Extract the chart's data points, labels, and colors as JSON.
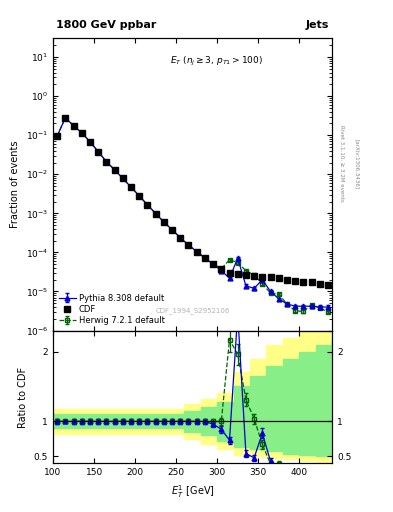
{
  "title_left": "1800 GeV ppbar",
  "title_right": "Jets",
  "watermark": "CDF_1994_S2952106",
  "right_label_top": "Rivet 3.1.10, ≥ 3.2M events",
  "right_label_bot": "[arXiv:1306.3436]",
  "ylabel_main": "Fraction of events",
  "ylabel_ratio": "Ratio to CDF",
  "xlabel": "$E_T^1$ [GeV]",
  "cdf_x": [
    105,
    115,
    125,
    135,
    145,
    155,
    165,
    175,
    185,
    195,
    205,
    215,
    225,
    235,
    245,
    255,
    265,
    275,
    285,
    295,
    305,
    315,
    325,
    335,
    345,
    355,
    365,
    375,
    385,
    395,
    405,
    415,
    425,
    435
  ],
  "cdf_y": [
    0.095,
    0.28,
    0.175,
    0.115,
    0.068,
    0.038,
    0.021,
    0.013,
    0.0078,
    0.0047,
    0.0028,
    0.00165,
    0.00099,
    0.0006,
    0.00038,
    0.00024,
    0.000155,
    0.000105,
    7.2e-05,
    5.2e-05,
    3.8e-05,
    3e-05,
    2.8e-05,
    2.6e-05,
    2.5e-05,
    2.4e-05,
    2.3e-05,
    2.2e-05,
    2e-05,
    1.9e-05,
    1.8e-05,
    1.7e-05,
    1.6e-05,
    1.5e-05
  ],
  "herwig_x": [
    105,
    115,
    125,
    135,
    145,
    155,
    165,
    175,
    185,
    195,
    205,
    215,
    225,
    235,
    245,
    255,
    265,
    275,
    285,
    295,
    305,
    315,
    325,
    335,
    345,
    355,
    365,
    375,
    385,
    395,
    405,
    415,
    425,
    435
  ],
  "herwig_y": [
    0.095,
    0.28,
    0.175,
    0.115,
    0.068,
    0.038,
    0.021,
    0.013,
    0.0078,
    0.0047,
    0.0028,
    0.00165,
    0.00099,
    0.0006,
    0.00038,
    0.00024,
    0.000155,
    0.000105,
    7.2e-05,
    5.2e-05,
    3.8e-05,
    6.5e-05,
    5.5e-05,
    3.4e-05,
    2.6e-05,
    1.6e-05,
    9e-06,
    8.5e-06,
    4.8e-06,
    3.2e-06,
    3.1e-06,
    4.5e-06,
    3.8e-06,
    3e-06
  ],
  "herwig_yerr": [
    0.003,
    0.008,
    0.006,
    0.005,
    0.003,
    0.0015,
    0.0009,
    0.0005,
    0.0003,
    0.0002,
    0.00012,
    7e-05,
    4e-05,
    2.5e-05,
    1.5e-05,
    1e-05,
    7e-06,
    5e-06,
    3.5e-06,
    2.5e-06,
    1.8e-06,
    4e-06,
    3e-06,
    1.8e-06,
    1.3e-06,
    1e-06,
    6e-07,
    6e-07,
    4e-07,
    3e-07,
    3e-07,
    4e-07,
    3e-07,
    2.5e-07
  ],
  "pythia_x": [
    105,
    115,
    125,
    135,
    145,
    155,
    165,
    175,
    185,
    195,
    205,
    215,
    225,
    235,
    245,
    255,
    265,
    275,
    285,
    295,
    305,
    315,
    325,
    335,
    345,
    355,
    365,
    375,
    385,
    395,
    405,
    415,
    425,
    435
  ],
  "pythia_y": [
    0.095,
    0.28,
    0.175,
    0.115,
    0.068,
    0.038,
    0.021,
    0.013,
    0.0078,
    0.0047,
    0.0028,
    0.00165,
    0.00099,
    0.0006,
    0.00038,
    0.00024,
    0.000155,
    0.000105,
    7.2e-05,
    5e-05,
    3.4e-05,
    2.2e-05,
    7.1e-05,
    1.4e-05,
    1.2e-05,
    2e-05,
    1e-05,
    6.5e-06,
    4.8e-06,
    4.2e-06,
    4.2e-06,
    4.2e-06,
    4e-06,
    4e-06
  ],
  "pythia_yerr": [
    0.003,
    0.008,
    0.006,
    0.005,
    0.003,
    0.0015,
    0.0009,
    0.0005,
    0.0003,
    0.0002,
    0.00012,
    7e-05,
    4e-05,
    2.5e-05,
    1.5e-05,
    1e-05,
    7e-06,
    5e-06,
    3.5e-06,
    2.5e-06,
    1.8e-06,
    1.5e-06,
    5e-06,
    1.2e-06,
    1e-06,
    1.4e-06,
    7e-07,
    5e-07,
    4e-07,
    4e-07,
    4e-07,
    4e-07,
    3.8e-07,
    3.8e-07
  ],
  "ratio_herwig_x": [
    105,
    115,
    125,
    135,
    145,
    155,
    165,
    175,
    185,
    195,
    205,
    215,
    225,
    235,
    245,
    255,
    265,
    275,
    285,
    295,
    305,
    315,
    325,
    335,
    345,
    355,
    365,
    375,
    385,
    395,
    405,
    415,
    425,
    435
  ],
  "ratio_herwig_y": [
    1.0,
    1.0,
    1.0,
    1.0,
    1.0,
    1.0,
    1.0,
    1.0,
    1.0,
    1.0,
    1.0,
    1.0,
    1.0,
    1.0,
    1.0,
    1.0,
    1.0,
    1.0,
    1.0,
    1.0,
    1.0,
    2.17,
    1.96,
    1.31,
    1.04,
    0.67,
    0.39,
    0.39,
    0.24,
    0.17,
    0.17,
    0.26,
    0.24,
    0.2
  ],
  "ratio_herwig_yerr": [
    0.03,
    0.02,
    0.03,
    0.03,
    0.03,
    0.03,
    0.03,
    0.03,
    0.03,
    0.03,
    0.03,
    0.03,
    0.03,
    0.03,
    0.03,
    0.04,
    0.04,
    0.04,
    0.04,
    0.04,
    0.05,
    0.18,
    0.15,
    0.09,
    0.07,
    0.06,
    0.04,
    0.04,
    0.03,
    0.02,
    0.02,
    0.03,
    0.03,
    0.02
  ],
  "ratio_pythia_x": [
    105,
    115,
    125,
    135,
    145,
    155,
    165,
    175,
    185,
    195,
    205,
    215,
    225,
    235,
    245,
    255,
    265,
    275,
    285,
    295,
    305,
    315,
    325,
    335,
    345,
    355,
    365,
    375,
    385,
    395,
    405,
    415,
    425,
    435
  ],
  "ratio_pythia_y": [
    1.0,
    1.0,
    1.0,
    1.0,
    1.0,
    1.0,
    1.0,
    1.0,
    1.0,
    1.0,
    1.0,
    1.0,
    1.0,
    1.0,
    1.0,
    1.0,
    1.0,
    1.0,
    1.0,
    0.96,
    0.89,
    0.73,
    2.54,
    0.54,
    0.48,
    0.83,
    0.43,
    0.3,
    0.24,
    0.22,
    0.23,
    0.25,
    0.25,
    0.27
  ],
  "ratio_pythia_yerr": [
    0.03,
    0.02,
    0.03,
    0.03,
    0.03,
    0.03,
    0.03,
    0.03,
    0.03,
    0.03,
    0.03,
    0.03,
    0.03,
    0.03,
    0.03,
    0.04,
    0.04,
    0.04,
    0.04,
    0.04,
    0.05,
    0.05,
    0.2,
    0.05,
    0.04,
    0.07,
    0.04,
    0.03,
    0.03,
    0.02,
    0.02,
    0.03,
    0.03,
    0.03
  ],
  "band_x_edges": [
    100,
    120,
    140,
    160,
    180,
    200,
    220,
    240,
    260,
    280,
    300,
    320,
    340,
    360,
    380,
    400,
    420,
    440
  ],
  "band_yellow_lo": [
    0.82,
    0.82,
    0.82,
    0.82,
    0.82,
    0.82,
    0.82,
    0.82,
    0.75,
    0.68,
    0.6,
    0.52,
    0.5,
    0.48,
    0.46,
    0.44,
    0.42,
    0.4
  ],
  "band_yellow_hi": [
    1.18,
    1.18,
    1.18,
    1.18,
    1.18,
    1.18,
    1.18,
    1.18,
    1.25,
    1.32,
    1.4,
    1.7,
    1.9,
    2.1,
    2.2,
    2.3,
    2.4,
    2.5
  ],
  "band_green_lo": [
    0.9,
    0.9,
    0.9,
    0.9,
    0.9,
    0.9,
    0.9,
    0.9,
    0.85,
    0.8,
    0.72,
    0.64,
    0.6,
    0.57,
    0.54,
    0.52,
    0.5,
    0.48
  ],
  "band_green_hi": [
    1.1,
    1.1,
    1.1,
    1.1,
    1.1,
    1.1,
    1.1,
    1.1,
    1.15,
    1.2,
    1.28,
    1.5,
    1.65,
    1.8,
    1.9,
    2.0,
    2.1,
    2.2
  ],
  "xlim": [
    100,
    440
  ],
  "ylim_main": [
    1e-06,
    30
  ],
  "ylim_ratio": [
    0.4,
    2.3
  ],
  "yticks_ratio": [
    0.5,
    1.0,
    2.0
  ],
  "ytick_labels_ratio": [
    "0.5",
    "1",
    "2"
  ],
  "herwig_color": "#006400",
  "pythia_color": "#0000CC",
  "cdf_color": "#000000",
  "yellow_color": "#FFFF88",
  "green_color": "#88EE88",
  "bg_color": "#ffffff"
}
